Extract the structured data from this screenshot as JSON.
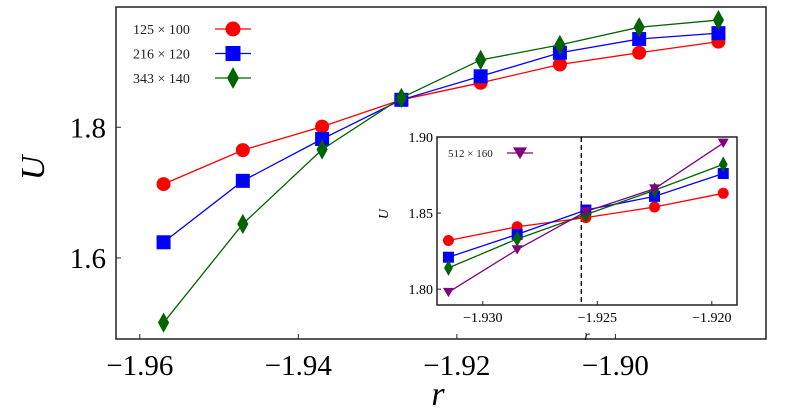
{
  "chart_data": [
    {
      "type": "line",
      "xlabel": "r",
      "ylabel": "U",
      "xlim": [
        -1.963,
        -1.881
      ],
      "ylim": [
        1.476,
        1.984
      ],
      "xticks": [
        -1.96,
        -1.94,
        -1.92,
        -1.9
      ],
      "xtick_labels": [
        "−1.96",
        "−1.94",
        "−1.92",
        "−1.90"
      ],
      "yticks": [
        1.6,
        1.8
      ],
      "ytick_labels": [
        "1.6",
        "1.8"
      ],
      "grid": false,
      "legend_position": "top-left",
      "x": [
        -1.957,
        -1.947,
        -1.937,
        -1.927,
        -1.917,
        -1.907,
        -1.897,
        -1.887
      ],
      "series": [
        {
          "name": "125 × 100",
          "color": "#ff0000",
          "marker": "circle",
          "values": [
            1.713,
            1.765,
            1.801,
            1.842,
            1.868,
            1.896,
            1.914,
            1.931
          ]
        },
        {
          "name": "216 × 120",
          "color": "#0000ff",
          "marker": "square",
          "values": [
            1.624,
            1.718,
            1.782,
            1.842,
            1.878,
            1.914,
            1.935,
            1.944
          ]
        },
        {
          "name": "343 × 140",
          "color": "#006400",
          "marker": "diamond",
          "values": [
            1.501,
            1.652,
            1.766,
            1.845,
            1.903,
            1.926,
            1.953,
            1.964
          ]
        }
      ]
    },
    {
      "type": "line",
      "xlabel": "r",
      "ylabel": "U",
      "xlim": [
        -1.932,
        -1.9189
      ],
      "ylim": [
        1.7896,
        1.9
      ],
      "xticks": [
        -1.93,
        -1.925,
        -1.92
      ],
      "xtick_labels": [
        "−1.930",
        "−1.925",
        "−1.920"
      ],
      "yticks": [
        1.8,
        1.85,
        1.9
      ],
      "ytick_labels": [
        "1.80",
        "1.85",
        "1.90"
      ],
      "grid": false,
      "legend_position": "top-left",
      "vline": -1.9257,
      "x": [
        -1.9315,
        -1.9285,
        -1.9255,
        -1.9225,
        -1.9195
      ],
      "series": [
        {
          "color": "#ff0000",
          "marker": "circle",
          "values": [
            1.832,
            1.841,
            1.847,
            1.854,
            1.863
          ]
        },
        {
          "color": "#0000ff",
          "marker": "square",
          "values": [
            1.821,
            1.836,
            1.852,
            1.861,
            1.876
          ]
        },
        {
          "color": "#006400",
          "marker": "diamond",
          "values": [
            1.814,
            1.833,
            1.849,
            1.865,
            1.882
          ]
        },
        {
          "name": "512 × 160",
          "color": "#800080",
          "marker": "triangle-down",
          "values": [
            1.798,
            1.826,
            1.851,
            1.866,
            1.896
          ]
        }
      ]
    }
  ]
}
